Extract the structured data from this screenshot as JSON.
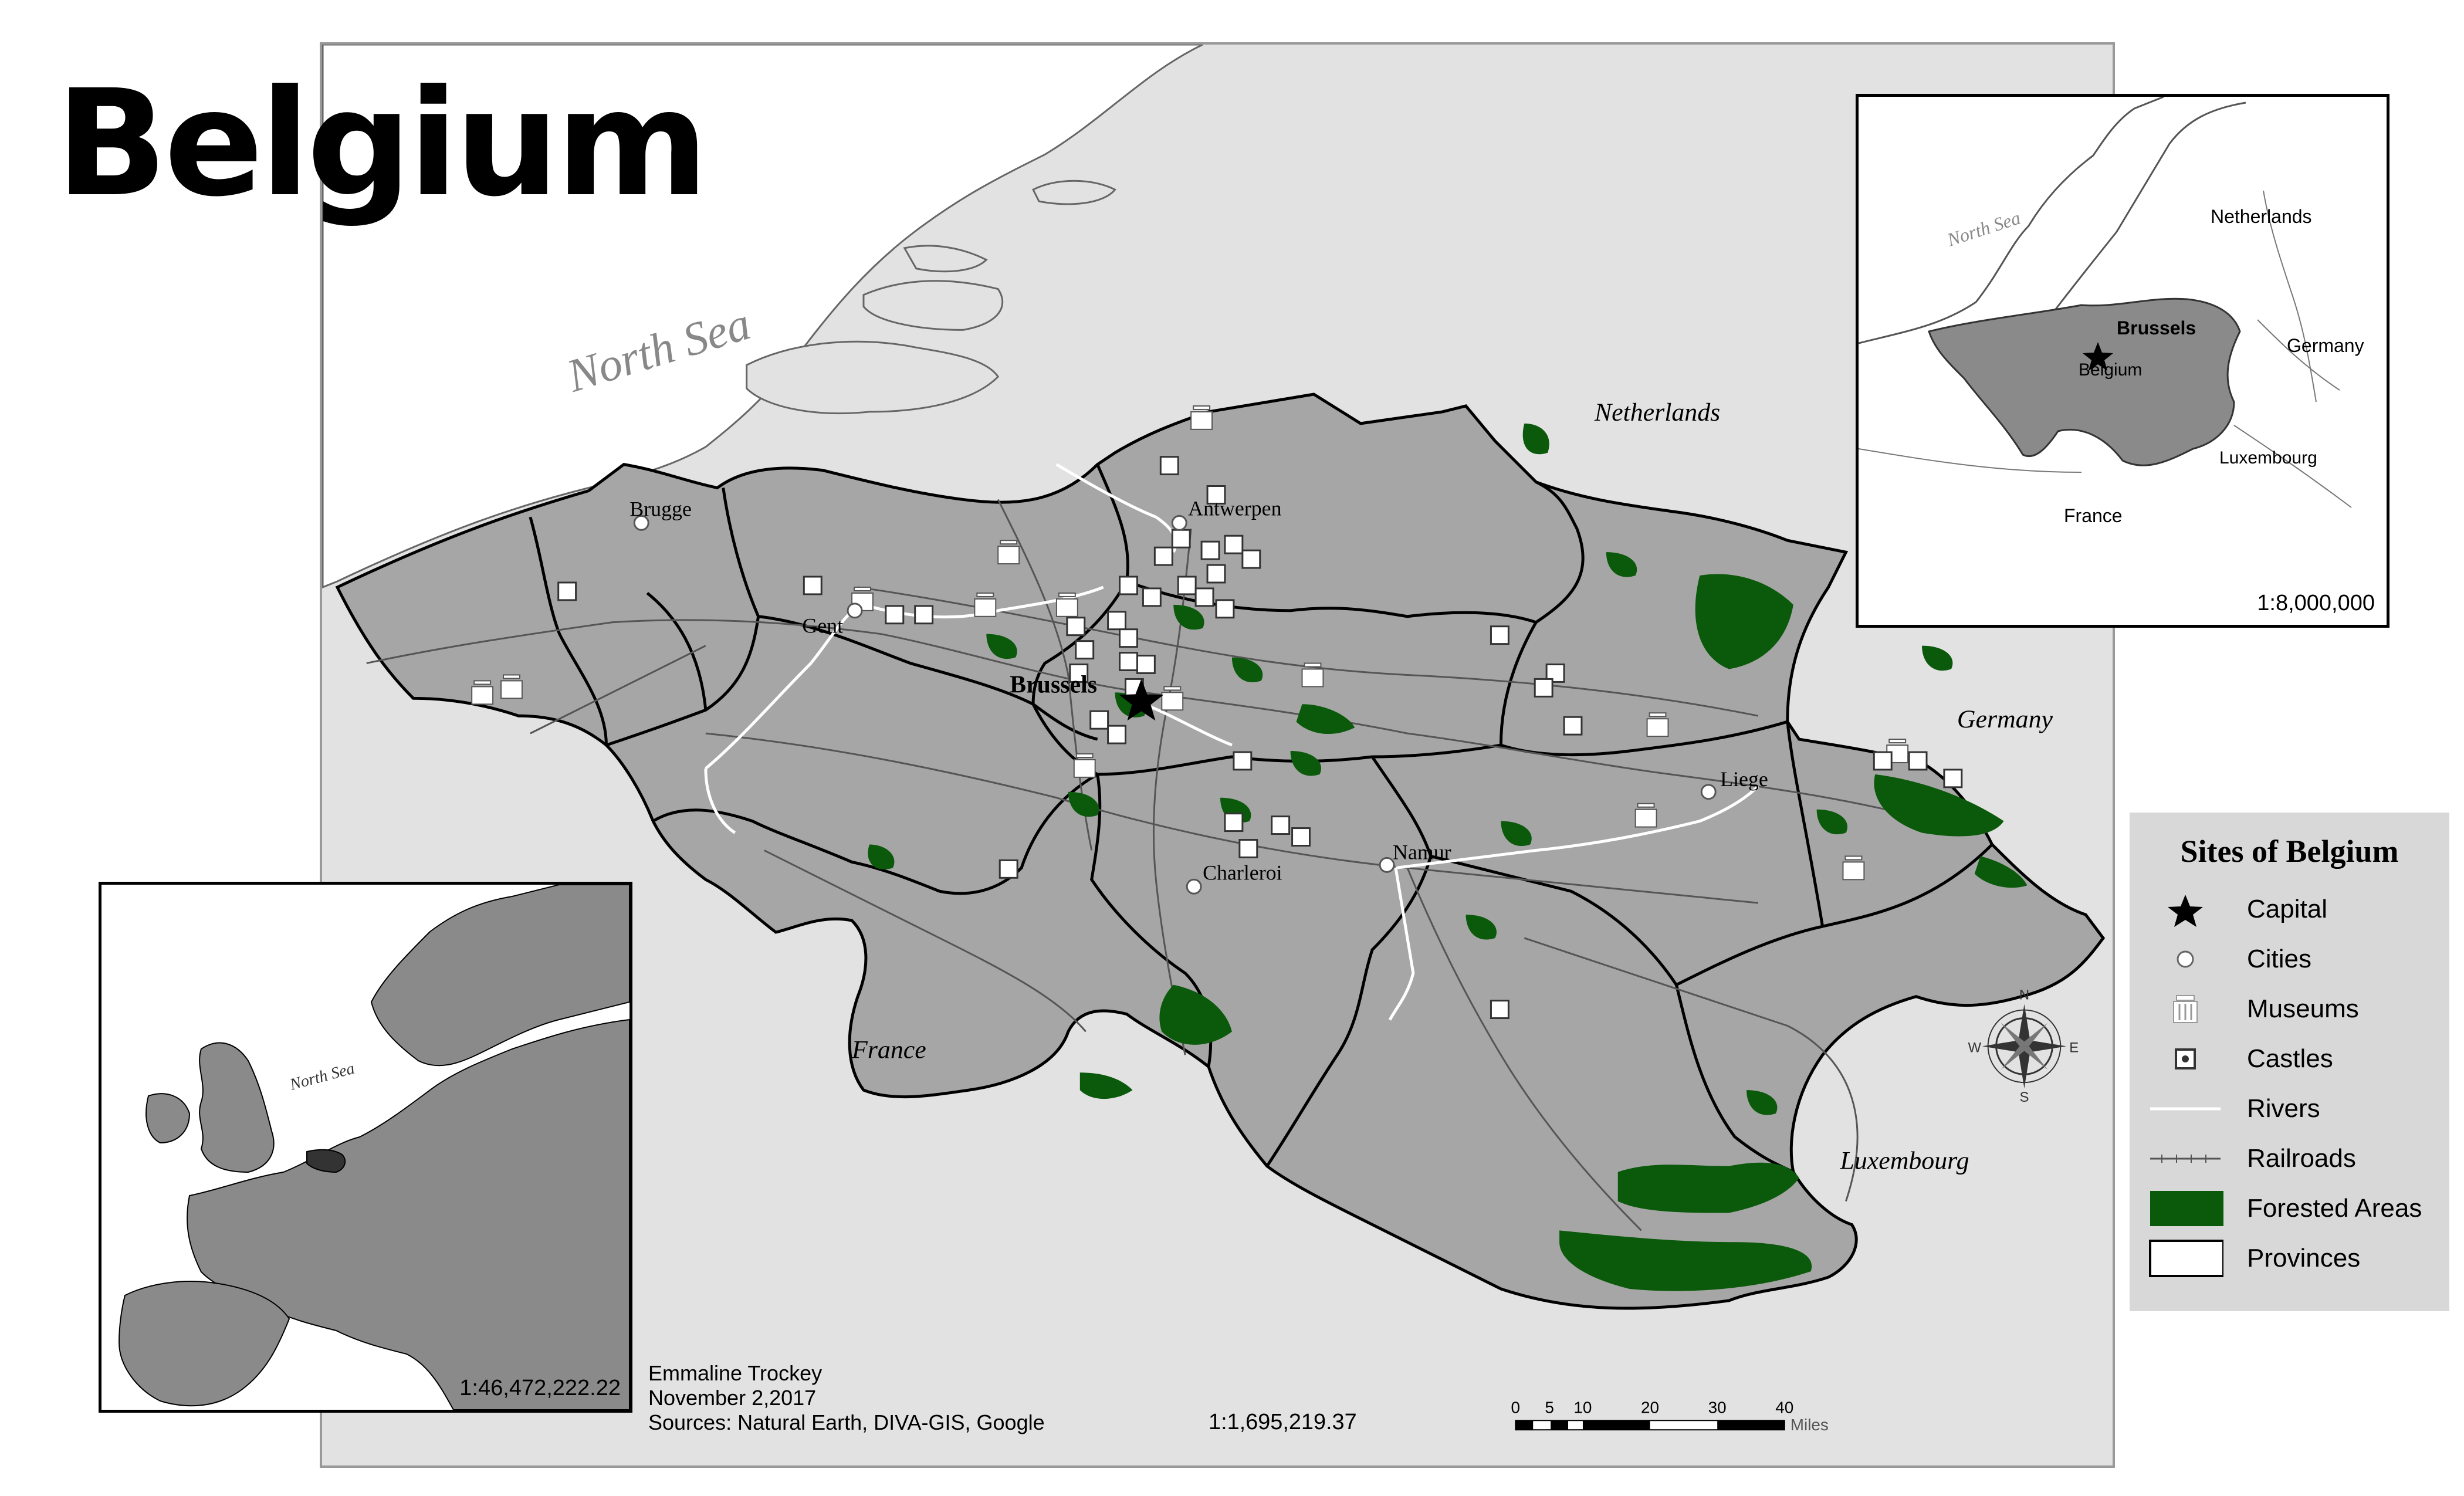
{
  "title": "Belgium",
  "main_map": {
    "sea_label": "North Sea",
    "countries": {
      "netherlands": "Netherlands",
      "germany": "Germany",
      "france": "France",
      "luxembourg": "Luxembourg"
    },
    "capital": "Brussels",
    "cities": [
      "Brugge",
      "Gent",
      "Antwerpen",
      "Liege",
      "Namur",
      "Charleroi"
    ],
    "scale": "1:1,695,219.37",
    "scalebar": {
      "ticks": [
        "0",
        "5",
        "10",
        "20",
        "30",
        "40"
      ],
      "unit": "Miles"
    },
    "compass": {
      "n": "N",
      "s": "S",
      "e": "E",
      "w": "W"
    }
  },
  "inset_top_right": {
    "sea_label": "North Sea",
    "labels": {
      "netherlands": "Netherlands",
      "germany": "Germany",
      "brussels": "Brussels",
      "belgium": "Belgium",
      "luxembourg": "Luxembourg",
      "france": "France"
    },
    "scale": "1:8,000,000"
  },
  "inset_bottom_left": {
    "sea_label": "North Sea",
    "scale": "1:46,472,222.22"
  },
  "legend": {
    "title": "Sites of Belgium",
    "items": [
      {
        "label": "Capital",
        "icon": "star-icon"
      },
      {
        "label": "Cities",
        "icon": "circle-icon"
      },
      {
        "label": "Museums",
        "icon": "museum-icon"
      },
      {
        "label": "Castles",
        "icon": "castle-icon"
      },
      {
        "label": "Rivers",
        "icon": "river-line"
      },
      {
        "label": "Railroads",
        "icon": "railroad-line"
      },
      {
        "label": "Forested Areas",
        "icon": "forest-swatch"
      },
      {
        "label": "Provinces",
        "icon": "province-swatch"
      }
    ],
    "colors": {
      "forest": "#0b5a0b",
      "province": "#a6a6a6",
      "background": "#e2e2e2"
    }
  },
  "credits": {
    "author": "Emmaline Trockey",
    "date": "November 2,2017",
    "sources": "Sources: Natural Earth, DIVA-GIS, Google"
  }
}
